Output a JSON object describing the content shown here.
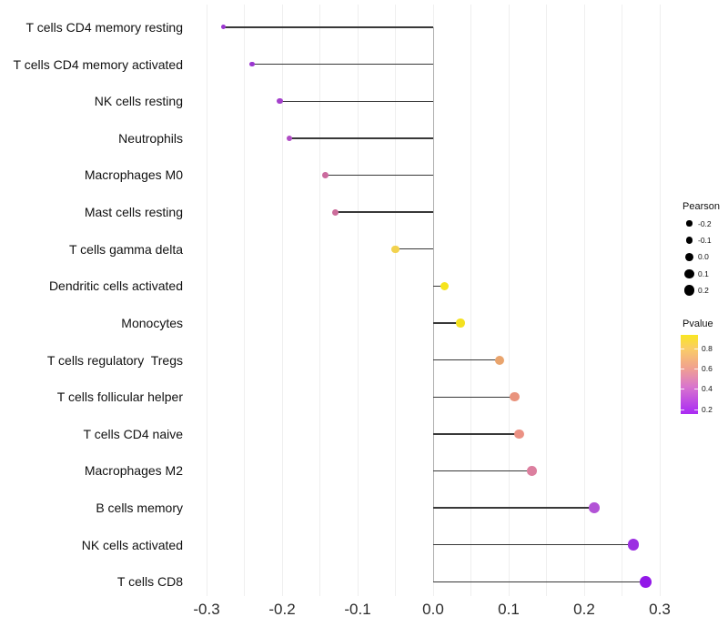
{
  "chart_data": {
    "type": "scatter",
    "subtype": "lollipop",
    "title": "",
    "xlabel": "",
    "ylabel": "",
    "x_range": [
      -0.327,
      0.315
    ],
    "x_major_step": 0.1,
    "x_minor_step": 0.05,
    "grid": "vertical-only",
    "legend_position": "right",
    "x_ticks": [
      {
        "value": -0.3,
        "label": "-0.3"
      },
      {
        "value": -0.2,
        "label": "-0.2"
      },
      {
        "value": -0.1,
        "label": "-0.1"
      },
      {
        "value": 0.0,
        "label": "0.0"
      },
      {
        "value": 0.1,
        "label": "0.1"
      },
      {
        "value": 0.2,
        "label": "0.2"
      },
      {
        "value": 0.3,
        "label": "0.3"
      }
    ],
    "points": [
      {
        "label": "T cells CD4 memory resting",
        "pearson": -0.278,
        "dot_color": "#9B36D0"
      },
      {
        "label": "T cells CD4 memory activated",
        "pearson": -0.24,
        "dot_color": "#9B36D0"
      },
      {
        "label": "NK cells resting",
        "pearson": -0.203,
        "dot_color": "#A440CC"
      },
      {
        "label": "Neutrophils",
        "pearson": -0.19,
        "dot_color": "#B04CC5"
      },
      {
        "label": "Macrophages M0",
        "pearson": -0.143,
        "dot_color": "#CB6A9E"
      },
      {
        "label": "Mast cells resting",
        "pearson": -0.13,
        "dot_color": "#CC6D9B"
      },
      {
        "label": "T cells gamma delta",
        "pearson": -0.05,
        "dot_color": "#F2D24E"
      },
      {
        "label": "Dendritic cells activated",
        "pearson": 0.015,
        "dot_color": "#F6E41C"
      },
      {
        "label": "Monocytes",
        "pearson": 0.036,
        "dot_color": "#F4E120"
      },
      {
        "label": "T cells regulatory  Tregs",
        "pearson": 0.088,
        "dot_color": "#E9A46D"
      },
      {
        "label": "T cells follicular helper",
        "pearson": 0.108,
        "dot_color": "#E9937D"
      },
      {
        "label": "T cells CD4 naive",
        "pearson": 0.114,
        "dot_color": "#EB9184"
      },
      {
        "label": "Macrophages M2",
        "pearson": 0.131,
        "dot_color": "#DC7F9F"
      },
      {
        "label": "B cells memory",
        "pearson": 0.213,
        "dot_color": "#B253D6"
      },
      {
        "label": "NK cells activated",
        "pearson": 0.265,
        "dot_color": "#9C2FE2"
      },
      {
        "label": "T cells CD8",
        "pearson": 0.281,
        "dot_color": "#9218E8"
      }
    ],
    "size_legend": {
      "title": "Pearson",
      "entries": [
        {
          "value": -0.2,
          "label": "-0.2"
        },
        {
          "value": -0.1,
          "label": "-0.1"
        },
        {
          "value": 0.0,
          "label": "0.0"
        },
        {
          "value": 0.1,
          "label": "0.1"
        },
        {
          "value": 0.2,
          "label": "0.2"
        }
      ]
    },
    "color_legend": {
      "title": "Pvalue",
      "ticks": [
        {
          "value": 0.8,
          "label": "0.8"
        },
        {
          "value": 0.6,
          "label": "0.6"
        },
        {
          "value": 0.4,
          "label": "0.4"
        },
        {
          "value": 0.2,
          "label": "0.2"
        }
      ],
      "value_range_bottom_to_top": [
        0.155,
        0.93
      ],
      "gradient_stops": [
        {
          "offset": 0.0,
          "color": "#F9E621"
        },
        {
          "offset": 0.17,
          "color": "#FACD66"
        },
        {
          "offset": 0.42,
          "color": "#F0A190"
        },
        {
          "offset": 0.65,
          "color": "#D976CC"
        },
        {
          "offset": 0.94,
          "color": "#B136EF"
        },
        {
          "offset": 1.0,
          "color": "#AB2BF2"
        }
      ]
    }
  }
}
